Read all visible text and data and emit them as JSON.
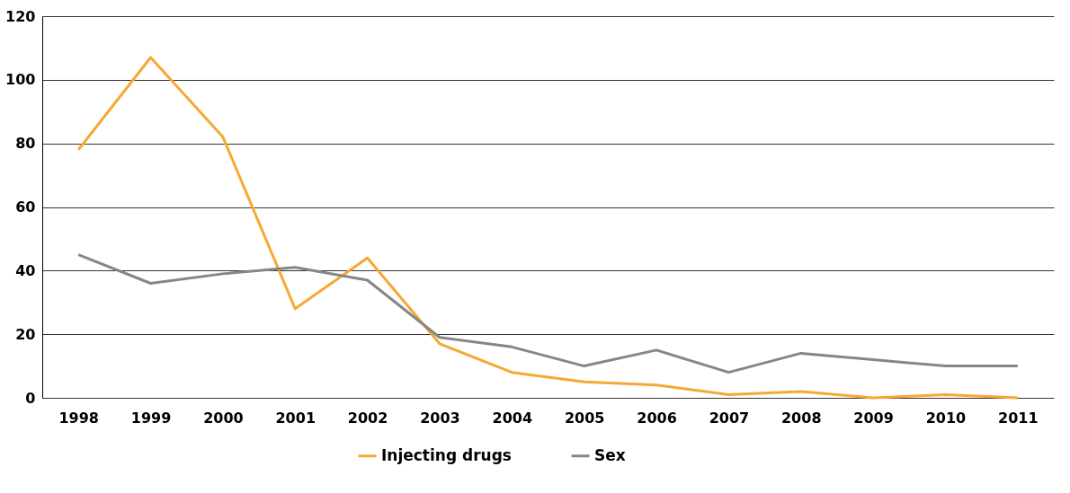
{
  "chart_data": {
    "type": "line",
    "categories": [
      "1998",
      "1999",
      "2000",
      "2001",
      "2002",
      "2003",
      "2004",
      "2005",
      "2006",
      "2007",
      "2008",
      "2009",
      "2010",
      "2011"
    ],
    "series": [
      {
        "name": "Injecting drugs",
        "color": "#f7a833",
        "values": [
          78,
          107,
          82,
          28,
          44,
          17,
          8,
          5,
          4,
          1,
          2,
          0,
          1,
          0
        ]
      },
      {
        "name": "Sex",
        "color": "#868686",
        "values": [
          45,
          36,
          39,
          41,
          37,
          19,
          16,
          10,
          15,
          8,
          14,
          12,
          10,
          10
        ]
      }
    ],
    "ylim": [
      0,
      120
    ],
    "yticks": [
      0,
      20,
      40,
      60,
      80,
      100,
      120
    ],
    "grid": "y",
    "legend": "bottom",
    "marker": "none",
    "line_style": "solid"
  }
}
